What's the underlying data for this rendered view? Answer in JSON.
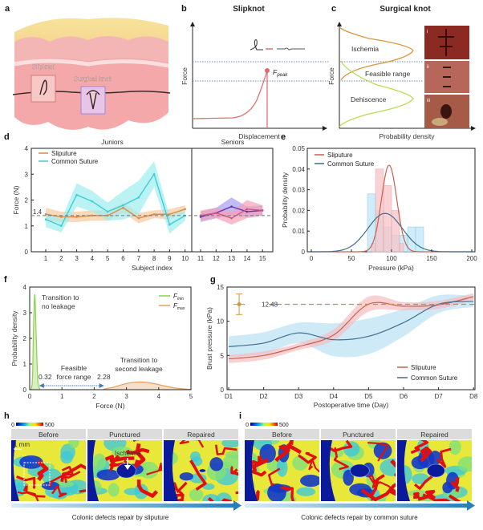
{
  "panels": {
    "a": {
      "label": "a",
      "slipknot_label": "Slipknot",
      "surgical_knot_label": "Surgical knot"
    },
    "b": {
      "label": "b",
      "title": "Slipknot",
      "ylabel": "Force",
      "xlabel": "Displacement",
      "peak_label": "F",
      "peak_sub": "peak"
    },
    "c": {
      "label": "c",
      "title": "Surgical knot",
      "ylabel": "Force",
      "xlabel": "Probability density",
      "regions": [
        "Ischemia",
        "Feasible range",
        "Dehiscence"
      ],
      "photo_labels": [
        "i",
        "ii",
        "iii"
      ]
    },
    "d": {
      "label": "d"
    },
    "e": {
      "label": "e"
    },
    "f": {
      "label": "f"
    },
    "g": {
      "label": "g"
    },
    "h": {
      "label": "h",
      "colorbar_min": "0",
      "colorbar_max": "500",
      "headers": [
        "Before",
        "Punctured",
        "Repaired"
      ],
      "scale_bar": "1 mm",
      "annotation": "Ischemia",
      "caption": "Colonic defects repair by sliputure"
    },
    "i": {
      "label": "i",
      "colorbar_min": "0",
      "colorbar_max": "500",
      "headers": [
        "Before",
        "Punctured",
        "Repaired"
      ],
      "caption": "Colonic defects repair by common suture"
    }
  },
  "colors": {
    "sliputure": "#c8604f",
    "sliputure_band": "#f6b8bc",
    "common": "#3f6e8e",
    "common_band": "#b3def3",
    "junior_sliputure": "#d98a4a",
    "junior_common": "#3fcdd3",
    "fmin": "#8fd14f",
    "fmax": "#e8a060"
  },
  "chart_data": [
    {
      "id": "d",
      "type": "line",
      "group_labels": [
        "Juniors",
        "Seniors"
      ],
      "xlabel": "Subject index",
      "ylabel": "Force (N)",
      "ylim": [
        0,
        4
      ],
      "yticks": [
        "0",
        "1",
        "2",
        "3",
        "4"
      ],
      "x": [
        1,
        2,
        3,
        4,
        5,
        6,
        7,
        8,
        9,
        10,
        11,
        12,
        13,
        14,
        15
      ],
      "reference_line": {
        "value": 1.4,
        "label": "1.4"
      },
      "legend": [
        "Sliputure",
        "Common Suture"
      ],
      "series": [
        {
          "name": "Sliputure",
          "x": [
            1,
            2,
            3,
            4,
            5,
            6,
            7,
            8,
            9,
            10
          ],
          "values": [
            1.45,
            1.35,
            1.35,
            1.4,
            1.4,
            1.7,
            1.3,
            1.45,
            1.45,
            1.65
          ],
          "ci": [
            0.25,
            0.2,
            0.2,
            0.2,
            0.2,
            0.2,
            0.2,
            0.15,
            0.2,
            0.15
          ]
        },
        {
          "name": "Common Suture",
          "x": [
            1,
            2,
            3,
            4,
            5,
            6,
            7,
            8,
            9,
            10
          ],
          "values": [
            1.25,
            1.0,
            2.2,
            1.95,
            1.55,
            1.8,
            2.1,
            3.0,
            1.05,
            1.4
          ],
          "ci": [
            0.3,
            0.25,
            0.45,
            0.4,
            0.35,
            0.55,
            0.65,
            0.5,
            0.35,
            0.2
          ]
        },
        {
          "x": [
            11,
            12,
            13,
            14,
            15
          ],
          "values": [
            1.35,
            1.5,
            1.75,
            1.55,
            1.6
          ],
          "ci": [
            0.2,
            0.2,
            0.35,
            0.2,
            0.2
          ]
        },
        {
          "x": [
            11,
            12,
            13,
            14,
            15
          ],
          "values": [
            1.4,
            1.5,
            1.3,
            1.65,
            1.6
          ],
          "ci": [
            0.2,
            0.2,
            0.25,
            0.35,
            0.2
          ]
        }
      ]
    },
    {
      "id": "e",
      "type": "bar",
      "xlabel": "Pressure (kPa)",
      "ylabel": "Probability density",
      "xlim": [
        0,
        200
      ],
      "ylim": [
        0,
        0.05
      ],
      "xticks": [
        "0",
        "50",
        "100",
        "150",
        "200"
      ],
      "yticks": [
        "0",
        "0.01",
        "0.02",
        "0.03",
        "0.04",
        "0.05"
      ],
      "legend": [
        "Sliputure",
        "Common Suture"
      ],
      "histograms": [
        {
          "name": "Common Suture",
          "bin_edges": [
            70,
            80,
            90,
            100,
            110,
            120,
            130,
            140
          ],
          "density": [
            0.028,
            0.02,
            0.012,
            0.008,
            0.008,
            0.012,
            0.012
          ]
        },
        {
          "name": "Sliputure",
          "bin_edges": [
            75,
            80,
            90,
            100,
            110,
            115
          ],
          "density": [
            0.004,
            0.04,
            0.032,
            0.02,
            0.004
          ]
        }
      ],
      "fits": [
        {
          "name": "Sliputure",
          "mean": 97,
          "sd": 9.5
        },
        {
          "name": "Common Suture",
          "mean": 92,
          "sd": 21.5
        }
      ]
    },
    {
      "id": "f",
      "type": "area",
      "xlabel": "Force (N)",
      "ylabel": "Probability density",
      "xlim": [
        0,
        5
      ],
      "ylim": [
        0,
        4
      ],
      "xticks": [
        "0",
        "1",
        "2",
        "3",
        "4",
        "5"
      ],
      "yticks": [
        "0",
        "1",
        "2",
        "3",
        "4"
      ],
      "legend": [
        {
          "symbol": "F",
          "sub": "min"
        },
        {
          "symbol": "F",
          "sub": "max"
        }
      ],
      "series": [
        {
          "x": [
            0.0,
            0.08,
            0.12,
            0.16,
            0.2,
            0.25,
            0.32
          ],
          "values": [
            0,
            0.3,
            2.5,
            3.7,
            2.2,
            0.4,
            0
          ]
        },
        {
          "x": [
            2.28,
            2.6,
            3.0,
            3.4,
            3.8,
            4.2,
            4.6,
            5.0
          ],
          "values": [
            0.02,
            0.1,
            0.24,
            0.3,
            0.25,
            0.14,
            0.05,
            0.01
          ]
        }
      ],
      "annotations": {
        "fmin_text": [
          "Transition to",
          "no leakage"
        ],
        "fmax_text": [
          "Transition to",
          "second leakage"
        ],
        "range_text": [
          "Feasible",
          "force range"
        ],
        "range_min": "0.32",
        "range_max": "2.28"
      },
      "feasible_range": [
        0.32,
        2.28
      ]
    },
    {
      "id": "g",
      "type": "line",
      "xlabel": "Postoperative time (Day)",
      "ylabel": "Brust pressure (kPa)",
      "categories": [
        "D1",
        "D2",
        "D3",
        "D4",
        "D5",
        "D6",
        "D7",
        "D8"
      ],
      "ylim": [
        0,
        15
      ],
      "yticks": [
        "0",
        "5",
        "10",
        "15"
      ],
      "legend": [
        "Sliputure",
        "Common Suture"
      ],
      "reference": {
        "value": 12.48,
        "label": "12.48",
        "error": 1.5
      },
      "series": [
        {
          "name": "Sliputure",
          "values": [
            4.5,
            5.0,
            6.3,
            8.0,
            12.5,
            12.2,
            12.4,
            13.6
          ],
          "ci": [
            0.6,
            0.6,
            0.5,
            0.8,
            1.1,
            0.6,
            0.6,
            0.5
          ]
        },
        {
          "name": "Common Suture",
          "values": [
            6.3,
            6.8,
            8.3,
            7.3,
            7.8,
            9.8,
            12.5,
            12.9
          ],
          "ci": [
            1.5,
            1.6,
            1.5,
            2.4,
            2.6,
            2.0,
            1.3,
            0.8
          ]
        }
      ]
    }
  ]
}
